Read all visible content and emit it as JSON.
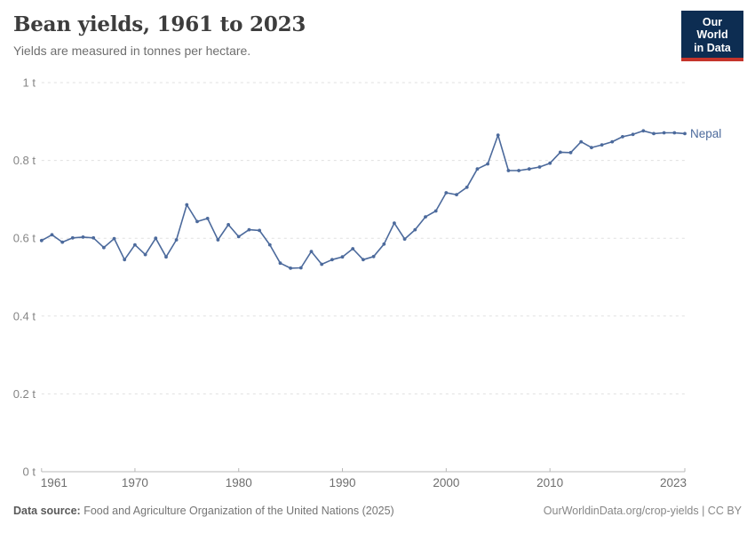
{
  "header": {
    "title": "Bean yields, 1961 to 2023",
    "subtitle": "Yields are measured in tonnes per hectare."
  },
  "logo": {
    "line1": "Our World",
    "line2": "in Data",
    "bg_color": "#0d2d52",
    "accent_color": "#c5342b"
  },
  "chart_data": {
    "type": "line",
    "title": "Bean yields, 1961 to 2023",
    "subtitle": "Yields are measured in tonnes per hectare.",
    "unit": "t",
    "xlim": [
      1961,
      2023
    ],
    "ylim": [
      0,
      1
    ],
    "grid": true,
    "x_ticks": [
      1961,
      1970,
      1980,
      1990,
      2000,
      2010,
      2023
    ],
    "y_ticks": [
      0,
      0.2,
      0.4,
      0.6,
      0.8,
      1
    ],
    "y_tick_labels": [
      "0 t",
      "0.2 t",
      "0.4 t",
      "0.6 t",
      "0.8 t",
      "1 t"
    ],
    "legend_position": "end-of-line-label",
    "series": [
      {
        "name": "Nepal",
        "color": "#4c6a9c",
        "x": [
          1961,
          1962,
          1963,
          1964,
          1965,
          1966,
          1967,
          1968,
          1969,
          1970,
          1971,
          1972,
          1973,
          1974,
          1975,
          1976,
          1977,
          1978,
          1979,
          1980,
          1981,
          1982,
          1983,
          1984,
          1985,
          1986,
          1987,
          1988,
          1989,
          1990,
          1991,
          1992,
          1993,
          1994,
          1995,
          1996,
          1997,
          1998,
          1999,
          2000,
          2001,
          2002,
          2003,
          2004,
          2005,
          2006,
          2007,
          2008,
          2009,
          2010,
          2011,
          2012,
          2013,
          2014,
          2015,
          2016,
          2017,
          2018,
          2019,
          2020,
          2021,
          2022,
          2023
        ],
        "values": [
          0.594,
          0.609,
          0.59,
          0.601,
          0.603,
          0.601,
          0.576,
          0.599,
          0.545,
          0.583,
          0.558,
          0.6,
          0.552,
          0.596,
          0.686,
          0.643,
          0.651,
          0.596,
          0.635,
          0.604,
          0.622,
          0.62,
          0.583,
          0.536,
          0.523,
          0.524,
          0.566,
          0.533,
          0.545,
          0.552,
          0.573,
          0.545,
          0.553,
          0.585,
          0.639,
          0.598,
          0.622,
          0.655,
          0.67,
          0.717,
          0.712,
          0.731,
          0.778,
          0.791,
          0.865,
          0.774,
          0.774,
          0.778,
          0.783,
          0.793,
          0.821,
          0.82,
          0.848,
          0.833,
          0.84,
          0.848,
          0.861,
          0.867,
          0.876,
          0.869,
          0.871,
          0.871,
          0.869
        ]
      }
    ]
  },
  "footer": {
    "source_label": "Data source:",
    "source_text": " Food and Agriculture Organization of the United Nations (2025)",
    "credit": "OurWorldinData.org/crop-yields | CC BY"
  }
}
